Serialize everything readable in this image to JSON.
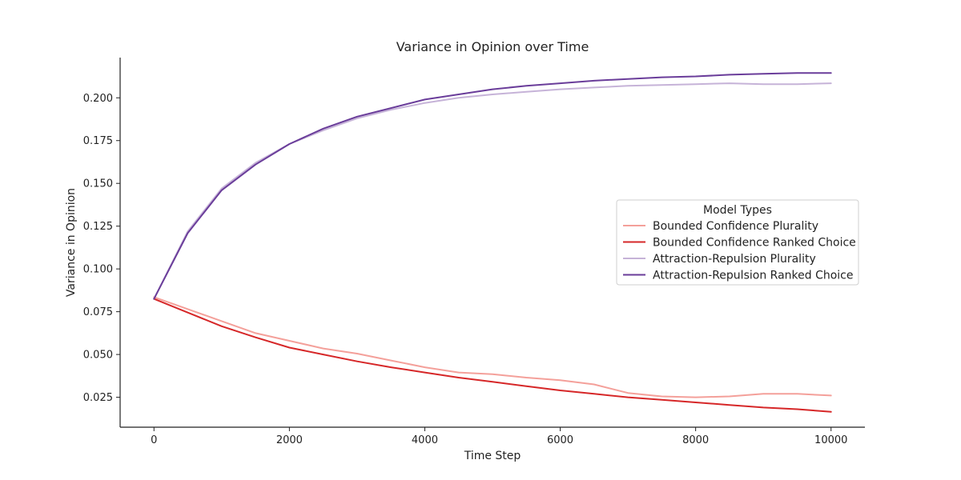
{
  "chart_data": {
    "type": "line",
    "title": "Variance in Opinion over Time",
    "xlabel": "Time Step",
    "ylabel": "Variance in Opinion",
    "xlim": [
      -500,
      10500
    ],
    "ylim": [
      0.0075,
      0.2235
    ],
    "xticks": [
      0,
      2000,
      4000,
      6000,
      8000,
      10000
    ],
    "xtick_labels": [
      "0",
      "2000",
      "4000",
      "6000",
      "8000",
      "10000"
    ],
    "yticks": [
      0.025,
      0.05,
      0.075,
      0.1,
      0.125,
      0.15,
      0.175,
      0.2
    ],
    "ytick_labels": [
      "0.025",
      "0.050",
      "0.075",
      "0.100",
      "0.125",
      "0.150",
      "0.175",
      "0.200"
    ],
    "grid": false,
    "legend": {
      "title": "Model Types",
      "placement": "center-right"
    },
    "x": [
      0,
      500,
      1000,
      1500,
      2000,
      2500,
      3000,
      3500,
      4000,
      4500,
      5000,
      5500,
      6000,
      6500,
      7000,
      7500,
      8000,
      8500,
      9000,
      9500,
      10000
    ],
    "series": [
      {
        "name": "Bounded Confidence Plurality",
        "color": "#f4a09a",
        "values": [
          0.0835,
          0.0765,
          0.0695,
          0.0625,
          0.058,
          0.0535,
          0.0505,
          0.0465,
          0.0425,
          0.0395,
          0.0385,
          0.0365,
          0.035,
          0.0325,
          0.0275,
          0.0255,
          0.025,
          0.0255,
          0.027,
          0.027,
          0.026
        ]
      },
      {
        "name": "Bounded Confidence Ranked Choice",
        "color": "#d62728",
        "values": [
          0.0825,
          0.0745,
          0.0665,
          0.06,
          0.054,
          0.05,
          0.046,
          0.0425,
          0.0395,
          0.0365,
          0.034,
          0.0315,
          0.029,
          0.027,
          0.025,
          0.0235,
          0.022,
          0.0205,
          0.019,
          0.018,
          0.0165
        ]
      },
      {
        "name": "Attraction-Repulsion Plurality",
        "color": "#c6b3d8",
        "values": [
          0.0825,
          0.122,
          0.147,
          0.162,
          0.173,
          0.181,
          0.188,
          0.193,
          0.197,
          0.2,
          0.202,
          0.2035,
          0.205,
          0.206,
          0.207,
          0.2075,
          0.208,
          0.2085,
          0.208,
          0.208,
          0.2085
        ]
      },
      {
        "name": "Attraction-Repulsion Ranked Choice",
        "color": "#6a3d9a",
        "values": [
          0.0825,
          0.121,
          0.146,
          0.161,
          0.173,
          0.182,
          0.189,
          0.194,
          0.199,
          0.202,
          0.205,
          0.207,
          0.2085,
          0.21,
          0.211,
          0.212,
          0.2125,
          0.2135,
          0.214,
          0.2145,
          0.2145
        ]
      }
    ]
  }
}
